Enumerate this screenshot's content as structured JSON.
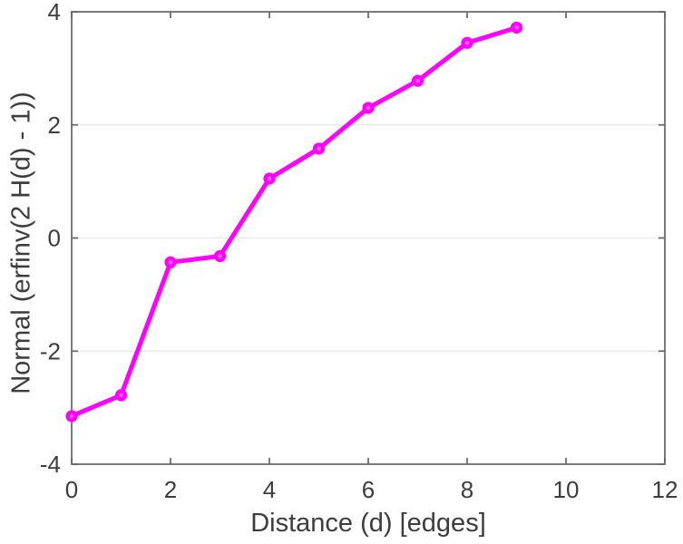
{
  "figure": {
    "background": "#ffffff"
  },
  "chart_data": {
    "type": "line",
    "title": "",
    "xlabel": "Distance (d) [edges]",
    "ylabel": "Normal (erfinv(2 H(d) - 1))",
    "x": [
      0,
      1,
      2,
      3,
      4,
      5,
      6,
      7,
      8,
      9
    ],
    "series": [
      {
        "name": "Normal (erfinv(2 H(d) - 1))",
        "values": [
          -3.15,
          -2.78,
          -0.43,
          -0.32,
          1.05,
          1.58,
          2.3,
          2.78,
          3.45,
          3.72
        ],
        "color": "#ff00ff",
        "marker": "circle",
        "marker_center_color": "#ff55ff",
        "line_width": 5
      }
    ],
    "xlim": [
      0,
      12
    ],
    "ylim": [
      -4,
      4
    ],
    "xticks": [
      0,
      2,
      4,
      6,
      8,
      10,
      12
    ],
    "yticks": [
      -4,
      -2,
      0,
      2,
      4
    ],
    "grid": "horizontal",
    "grid_color": "#e9e9e9",
    "axis_color": "#666666",
    "tick_label_color": "#3d3d3d",
    "legend": "none"
  }
}
